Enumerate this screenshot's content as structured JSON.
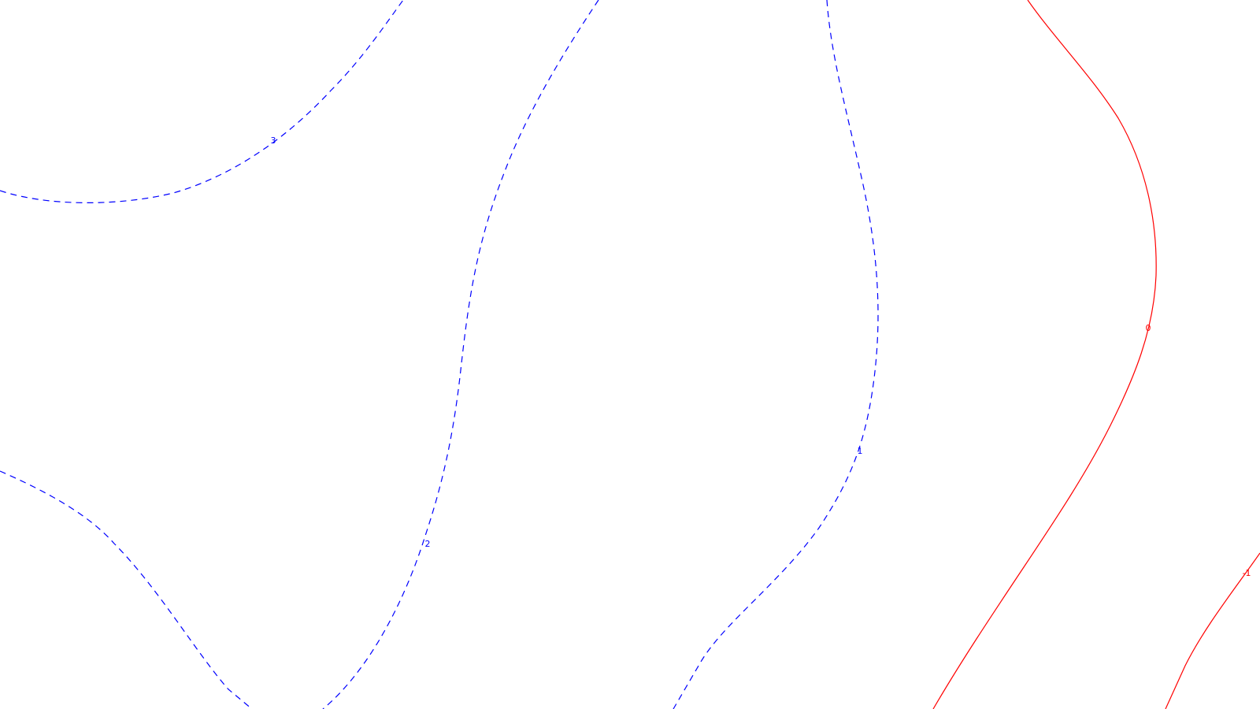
{
  "contour_map": {
    "colors": {
      "background": "#ffffff",
      "positive": "#0000ff",
      "zero_and_negative": "#ff0000"
    },
    "contours": [
      {
        "id": "contour-3",
        "level": 3,
        "label": "3",
        "style": "dashed",
        "color": "#0000ff"
      },
      {
        "id": "contour-2",
        "level": 2,
        "label": "2",
        "style": "dashed",
        "color": "#0000ff"
      },
      {
        "id": "contour-2-left",
        "level": 2,
        "label": "",
        "style": "dashed",
        "color": "#0000ff"
      },
      {
        "id": "contour-1",
        "level": 1,
        "label": "1",
        "style": "dashed",
        "color": "#0000ff"
      },
      {
        "id": "contour-0",
        "level": 0,
        "label": "0",
        "style": "solid",
        "color": "#ff0000"
      },
      {
        "id": "contour-neg1",
        "level": -1,
        "label": "-1",
        "style": "solid",
        "color": "#ff0000"
      }
    ]
  }
}
